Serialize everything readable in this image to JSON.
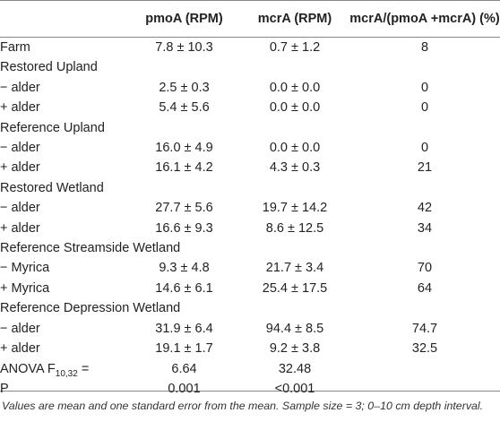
{
  "table": {
    "headers": [
      "",
      "pmoA (RPM)",
      "mcrA (RPM)",
      "mcrA/(pmoA +mcrA) (%)"
    ],
    "rows": [
      {
        "label": "Farm",
        "pmoA": "7.8 ± 10.3",
        "mcrA": "0.7 ± 1.2",
        "ratio": "8"
      },
      {
        "label": "Restored Upland",
        "pmoA": "",
        "mcrA": "",
        "ratio": ""
      },
      {
        "label": "− alder",
        "pmoA": "2.5 ± 0.3",
        "mcrA": "0.0 ± 0.0",
        "ratio": "0"
      },
      {
        "label": "+ alder",
        "pmoA": "5.4 ± 5.6",
        "mcrA": "0.0 ± 0.0",
        "ratio": "0"
      },
      {
        "label": "Reference Upland",
        "pmoA": "",
        "mcrA": "",
        "ratio": ""
      },
      {
        "label": "− alder",
        "pmoA": "16.0 ± 4.9",
        "mcrA": "0.0 ± 0.0",
        "ratio": "0"
      },
      {
        "label": "+ alder",
        "pmoA": "16.1 ± 4.2",
        "mcrA": "4.3 ± 0.3",
        "ratio": "21"
      },
      {
        "label": "Restored Wetland",
        "pmoA": "",
        "mcrA": "",
        "ratio": ""
      },
      {
        "label": "− alder",
        "pmoA": "27.7 ± 5.6",
        "mcrA": "19.7 ± 14.2",
        "ratio": "42"
      },
      {
        "label": "+ alder",
        "pmoA": "16.6 ± 9.3",
        "mcrA": "8.6 ± 12.5",
        "ratio": "34"
      },
      {
        "label": "Reference Streamside Wetland",
        "pmoA": "",
        "mcrA": "",
        "ratio": ""
      },
      {
        "label": "− Myrica",
        "pmoA": "9.3 ± 4.8",
        "mcrA": "21.7 ± 3.4",
        "ratio": "70"
      },
      {
        "label": "+ Myrica",
        "pmoA": "14.6 ± 6.1",
        "mcrA": "25.4 ± 17.5",
        "ratio": "64"
      },
      {
        "label": "Reference Depression Wetland",
        "pmoA": "",
        "mcrA": "",
        "ratio": ""
      },
      {
        "label": "− alder",
        "pmoA": "31.9 ± 6.4",
        "mcrA": "94.4 ± 8.5",
        "ratio": "74.7"
      },
      {
        "label": "+ alder",
        "pmoA": "19.1 ± 1.7",
        "mcrA": "9.2 ± 3.8",
        "ratio": "32.5"
      }
    ],
    "stats": {
      "anova_label": "ANOVA F",
      "anova_subscript": "10,32",
      "anova_suffix": " =",
      "anova_pmoA": "6.64",
      "anova_mcrA": "32.48",
      "p_label": "P",
      "p_pmoA": "0.001",
      "p_mcrA": "<0.001"
    }
  },
  "footnote": "Values are mean and one standard error from the mean. Sample size = 3; 0–10 cm depth interval."
}
